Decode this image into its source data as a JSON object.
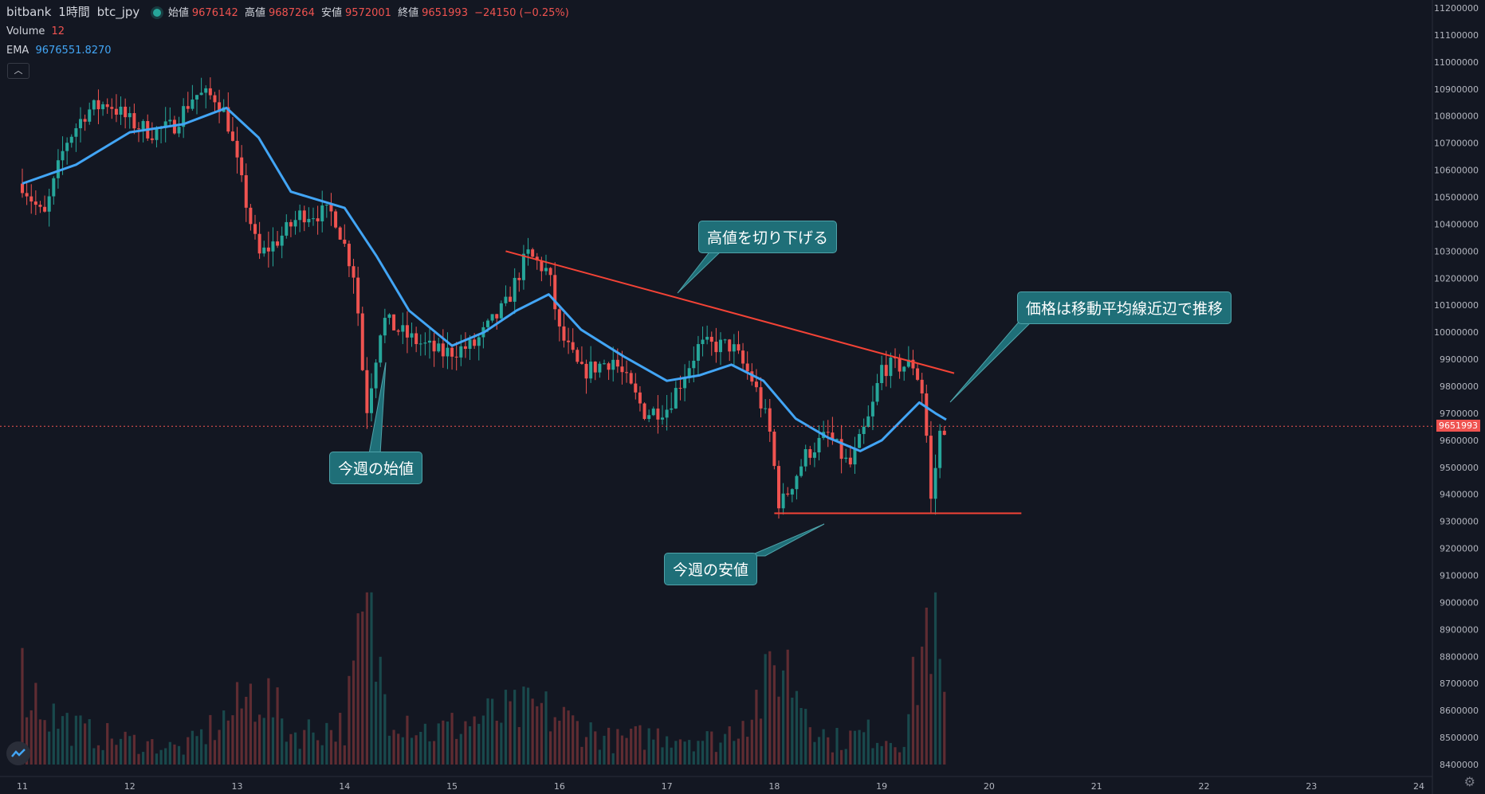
{
  "header": {
    "exchange": "bitbank",
    "interval": "1時間",
    "symbol": "btc_jpy",
    "open_label": "始値",
    "open": "9676142",
    "high_label": "高値",
    "high": "9687264",
    "low_label": "安値",
    "low": "9572001",
    "close_label": "終値",
    "close": "9651993",
    "change": "−24150 (−0.25%)"
  },
  "indicators": {
    "volume_label": "Volume",
    "volume_value": "12",
    "ema_label": "EMA",
    "ema_value": "9676551.8270"
  },
  "annotations": {
    "lower_highs": "高値を切り下げる",
    "near_ma": "価格は移動平均線近辺で推移",
    "week_open": "今週の始値",
    "week_low": "今週の安値"
  },
  "last_price_tag": "9651993",
  "colors": {
    "background": "#131722",
    "up": "#26a69a",
    "down": "#ef5350",
    "ema": "#42a5f5",
    "trendline": "#f44336",
    "callout": "#1f6f78"
  },
  "chart_data": {
    "type": "candlestick",
    "title": "",
    "x_ticks": [
      "11",
      "12",
      "13",
      "14",
      "15",
      "16",
      "17",
      "18",
      "19",
      "20",
      "21",
      "22",
      "23",
      "24"
    ],
    "y_ticks": [
      "8400000",
      "8500000",
      "8600000",
      "8700000",
      "8800000",
      "8900000",
      "9000000",
      "9100000",
      "9200000",
      "9300000",
      "9400000",
      "9500000",
      "9600000",
      "9700000",
      "9800000",
      "9900000",
      "10000000",
      "10100000",
      "10200000",
      "10300000",
      "10400000",
      "10500000",
      "10600000",
      "10700000",
      "10800000",
      "10900000",
      "11000000",
      "11100000",
      "11200000"
    ],
    "ylim": [
      8400000,
      11200000
    ],
    "xlim_days": [
      11,
      24
    ],
    "price_series": [
      {
        "day": 11.0,
        "close": 10550000
      },
      {
        "day": 11.2,
        "close": 10420000
      },
      {
        "day": 11.4,
        "close": 10700000
      },
      {
        "day": 11.6,
        "close": 10820000
      },
      {
        "day": 11.8,
        "close": 10850000
      },
      {
        "day": 12.0,
        "close": 10780000
      },
      {
        "day": 12.2,
        "close": 10740000
      },
      {
        "day": 12.4,
        "close": 10760000
      },
      {
        "day": 12.6,
        "close": 10880000
      },
      {
        "day": 12.8,
        "close": 10870000
      },
      {
        "day": 12.9,
        "close": 10800000
      },
      {
        "day": 13.0,
        "close": 10620000
      },
      {
        "day": 13.1,
        "close": 10450000
      },
      {
        "day": 13.2,
        "close": 10280000
      },
      {
        "day": 13.4,
        "close": 10350000
      },
      {
        "day": 13.6,
        "close": 10440000
      },
      {
        "day": 13.9,
        "close": 10440000
      },
      {
        "day": 14.1,
        "close": 10200000
      },
      {
        "day": 14.2,
        "close": 9700000
      },
      {
        "day": 14.35,
        "close": 10050000
      },
      {
        "day": 14.6,
        "close": 9980000
      },
      {
        "day": 14.9,
        "close": 9920000
      },
      {
        "day": 15.2,
        "close": 9950000
      },
      {
        "day": 15.5,
        "close": 10100000
      },
      {
        "day": 15.7,
        "close": 10290000
      },
      {
        "day": 15.9,
        "close": 10220000
      },
      {
        "day": 16.0,
        "close": 10000000
      },
      {
        "day": 16.2,
        "close": 9850000
      },
      {
        "day": 16.5,
        "close": 9900000
      },
      {
        "day": 16.8,
        "close": 9700000
      },
      {
        "day": 17.0,
        "close": 9720000
      },
      {
        "day": 17.3,
        "close": 9950000
      },
      {
        "day": 17.6,
        "close": 9950000
      },
      {
        "day": 17.8,
        "close": 9820000
      },
      {
        "day": 17.95,
        "close": 9650000
      },
      {
        "day": 18.05,
        "close": 9350000
      },
      {
        "day": 18.3,
        "close": 9550000
      },
      {
        "day": 18.5,
        "close": 9620000
      },
      {
        "day": 18.7,
        "close": 9500000
      },
      {
        "day": 18.9,
        "close": 9700000
      },
      {
        "day": 19.0,
        "close": 9870000
      },
      {
        "day": 19.3,
        "close": 9880000
      },
      {
        "day": 19.4,
        "close": 9750000
      },
      {
        "day": 19.45,
        "close": 9350000
      },
      {
        "day": 19.55,
        "close": 9650000
      },
      {
        "day": 19.6,
        "close": 9651993
      }
    ],
    "ema_series": [
      {
        "day": 11.0,
        "value": 10550000
      },
      {
        "day": 11.5,
        "value": 10620000
      },
      {
        "day": 12.0,
        "value": 10740000
      },
      {
        "day": 12.5,
        "value": 10770000
      },
      {
        "day": 12.9,
        "value": 10830000
      },
      {
        "day": 13.2,
        "value": 10720000
      },
      {
        "day": 13.5,
        "value": 10520000
      },
      {
        "day": 14.0,
        "value": 10460000
      },
      {
        "day": 14.3,
        "value": 10280000
      },
      {
        "day": 14.6,
        "value": 10080000
      },
      {
        "day": 15.0,
        "value": 9950000
      },
      {
        "day": 15.3,
        "value": 10000000
      },
      {
        "day": 15.6,
        "value": 10080000
      },
      {
        "day": 15.9,
        "value": 10140000
      },
      {
        "day": 16.2,
        "value": 10010000
      },
      {
        "day": 16.6,
        "value": 9910000
      },
      {
        "day": 17.0,
        "value": 9820000
      },
      {
        "day": 17.3,
        "value": 9840000
      },
      {
        "day": 17.6,
        "value": 9880000
      },
      {
        "day": 17.9,
        "value": 9820000
      },
      {
        "day": 18.2,
        "value": 9680000
      },
      {
        "day": 18.5,
        "value": 9610000
      },
      {
        "day": 18.8,
        "value": 9560000
      },
      {
        "day": 19.0,
        "value": 9600000
      },
      {
        "day": 19.2,
        "value": 9680000
      },
      {
        "day": 19.35,
        "value": 9740000
      },
      {
        "day": 19.5,
        "value": 9700000
      },
      {
        "day": 19.6,
        "value": 9676551
      }
    ],
    "volume_profile": [
      {
        "day": 11.0,
        "v": 0.55
      },
      {
        "day": 11.3,
        "v": 0.3
      },
      {
        "day": 11.6,
        "v": 0.2
      },
      {
        "day": 12.0,
        "v": 0.15
      },
      {
        "day": 12.5,
        "v": 0.1
      },
      {
        "day": 13.0,
        "v": 0.35
      },
      {
        "day": 13.2,
        "v": 0.5
      },
      {
        "day": 13.5,
        "v": 0.2
      },
      {
        "day": 14.0,
        "v": 0.25
      },
      {
        "day": 14.2,
        "v": 0.95
      },
      {
        "day": 14.4,
        "v": 0.4
      },
      {
        "day": 14.8,
        "v": 0.2
      },
      {
        "day": 15.3,
        "v": 0.3
      },
      {
        "day": 15.8,
        "v": 0.35
      },
      {
        "day": 16.0,
        "v": 0.3
      },
      {
        "day": 16.5,
        "v": 0.15
      },
      {
        "day": 17.0,
        "v": 0.2
      },
      {
        "day": 17.5,
        "v": 0.15
      },
      {
        "day": 17.95,
        "v": 0.5
      },
      {
        "day": 18.05,
        "v": 0.7
      },
      {
        "day": 18.5,
        "v": 0.15
      },
      {
        "day": 18.9,
        "v": 0.2
      },
      {
        "day": 19.2,
        "v": 0.15
      },
      {
        "day": 19.45,
        "v": 1.0
      },
      {
        "day": 19.6,
        "v": 0.3
      }
    ],
    "trendline_highs": [
      {
        "day": 15.5,
        "price": 10300000
      },
      {
        "day": 19.6,
        "price": 9860000
      }
    ],
    "support_line": {
      "price": 9330000,
      "from_day": 18.0,
      "to_day": 20.3
    },
    "last_price": 9651993
  }
}
